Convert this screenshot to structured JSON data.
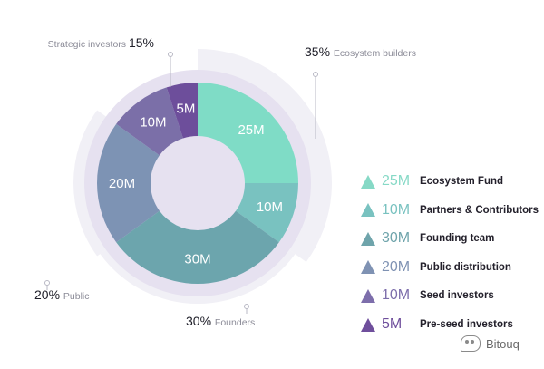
{
  "chart_data": {
    "type": "pie",
    "slices": [
      {
        "label": "Ecosystem Fund",
        "display_value": "25M",
        "value": 25,
        "color": "#7fdcc6",
        "legend_color": "#86d9c6"
      },
      {
        "label": "Partners & Contributors",
        "display_value": "10M",
        "value": 10,
        "color": "#79c2c0",
        "legend_color": "#79c2c0"
      },
      {
        "label": "Founding team",
        "display_value": "30M",
        "value": 30,
        "color": "#6ca5ad",
        "legend_color": "#6fa4ab"
      },
      {
        "label": "Public distribution",
        "display_value": "20M",
        "value": 20,
        "color": "#7d93b4",
        "legend_color": "#7f92b3"
      },
      {
        "label": "Seed investors",
        "display_value": "10M",
        "value": 10,
        "color": "#7b6fa8",
        "legend_color": "#7d6eab"
      },
      {
        "label": "Pre-seed investors",
        "display_value": "5M",
        "value": 5,
        "color": "#6d4e9b",
        "legend_color": "#6f4f9c"
      }
    ],
    "groups": [
      {
        "percent": "35%",
        "name": "Ecosystem builders",
        "value": 35
      },
      {
        "percent": "30%",
        "name": "Founders",
        "value": 30
      },
      {
        "percent": "20%",
        "name": "Public",
        "value": 20
      },
      {
        "percent": "15%",
        "name": "Strategic investors",
        "value": 15
      }
    ],
    "start_angle_deg": 0,
    "direction": "clockwise"
  },
  "colors": {
    "group_band": "#f1f0f6",
    "inner_ring": "#e6e1f0",
    "callout_line": "#b8b8c4",
    "percent_text": "#1e1e28",
    "group_name_text": "#8c8c98",
    "slice_label_text": "#ffffff"
  },
  "watermark": {
    "text": "Bitouq",
    "icon": "chat-bubble-icon"
  }
}
